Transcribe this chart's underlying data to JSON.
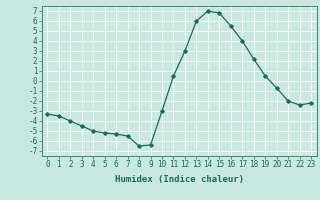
{
  "x": [
    0,
    1,
    2,
    3,
    4,
    5,
    6,
    7,
    8,
    9,
    10,
    11,
    12,
    13,
    14,
    15,
    16,
    17,
    18,
    19,
    20,
    21,
    22,
    23
  ],
  "y": [
    -3.3,
    -3.5,
    -4.0,
    -4.5,
    -5.0,
    -5.2,
    -5.3,
    -5.5,
    -6.5,
    -6.4,
    -3.0,
    0.5,
    3.0,
    6.0,
    7.0,
    6.8,
    5.5,
    4.0,
    2.2,
    0.5,
    -0.7,
    -2.0,
    -2.4,
    -2.2
  ],
  "line_color": "#1a6b5a",
  "marker": "D",
  "markersize": 1.8,
  "linewidth": 0.9,
  "xlabel": "Humidex (Indice chaleur)",
  "xlabel_fontsize": 6.5,
  "xlabel_fontweight": "bold",
  "xticks": [
    0,
    1,
    2,
    3,
    4,
    5,
    6,
    7,
    8,
    9,
    10,
    11,
    12,
    13,
    14,
    15,
    16,
    17,
    18,
    19,
    20,
    21,
    22,
    23
  ],
  "xtick_labels": [
    "0",
    "1",
    "2",
    "3",
    "4",
    "5",
    "6",
    "7",
    "8",
    "9",
    "10",
    "11",
    "12",
    "13",
    "14",
    "15",
    "16",
    "17",
    "18",
    "19",
    "20",
    "21",
    "22",
    "23"
  ],
  "yticks": [
    -7,
    -6,
    -5,
    -4,
    -3,
    -2,
    -1,
    0,
    1,
    2,
    3,
    4,
    5,
    6,
    7
  ],
  "ylim": [
    -7.5,
    7.5
  ],
  "xlim": [
    -0.5,
    23.5
  ],
  "bg_color": "#c8e8e0",
  "grid_color": "#ffffff",
  "tick_fontsize": 5.5,
  "fig_bg": "#c8e8e0",
  "spine_color": "#3a8a70"
}
